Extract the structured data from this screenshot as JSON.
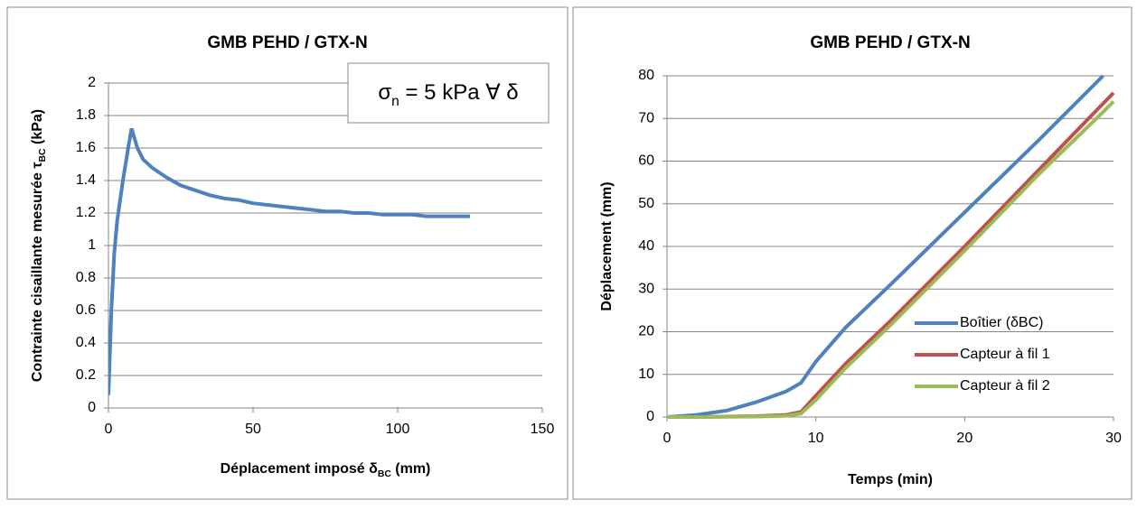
{
  "chart_data": [
    {
      "type": "line",
      "title": "GMB PEHD / GTX-N",
      "xlabel": [
        {
          "text": "Déplacement imposé δ"
        },
        {
          "text": "BC",
          "sub": true
        },
        {
          "text": " (mm)"
        }
      ],
      "ylabel": [
        {
          "text": "Contrainte cisaillante mesurée  τ"
        },
        {
          "text": "BC",
          "sub": true
        },
        {
          "text": " (kPa)"
        }
      ],
      "annotation": [
        {
          "text": "σ"
        },
        {
          "text": "n",
          "sub": true
        },
        {
          "text": " = 5 kPa ∀ δ"
        }
      ],
      "xlim": [
        0,
        150
      ],
      "xticks": [
        0,
        50,
        100,
        150
      ],
      "ylim": [
        0,
        2
      ],
      "yticks": [
        0,
        0.2,
        0.4,
        0.6,
        0.8,
        1,
        1.2,
        1.4,
        1.6,
        1.8,
        2
      ],
      "grid": true,
      "x": [
        0,
        1,
        2,
        3,
        5,
        7,
        8,
        10,
        12,
        15,
        20,
        25,
        30,
        35,
        40,
        45,
        50,
        55,
        60,
        65,
        70,
        75,
        80,
        85,
        90,
        95,
        100,
        105,
        110,
        115,
        120,
        125
      ],
      "series": [
        {
          "color": "#4f81bd",
          "values": [
            0.08,
            0.6,
            0.95,
            1.15,
            1.4,
            1.62,
            1.72,
            1.6,
            1.53,
            1.48,
            1.42,
            1.37,
            1.34,
            1.31,
            1.29,
            1.28,
            1.26,
            1.25,
            1.24,
            1.23,
            1.22,
            1.21,
            1.21,
            1.2,
            1.2,
            1.19,
            1.19,
            1.19,
            1.18,
            1.18,
            1.18,
            1.18
          ]
        }
      ]
    },
    {
      "type": "line",
      "title": "GMB PEHD / GTX-N",
      "xlabel": [
        {
          "text": "Temps (min)"
        }
      ],
      "ylabel": [
        {
          "text": "Déplacement (mm)"
        }
      ],
      "xlim": [
        0,
        30
      ],
      "xticks": [
        0,
        10,
        20,
        30
      ],
      "ylim": [
        0,
        80
      ],
      "yticks": [
        0,
        10,
        20,
        30,
        40,
        50,
        60,
        70,
        80
      ],
      "grid": true,
      "legend": "lower right",
      "x": [
        0,
        2,
        4,
        6,
        8,
        9,
        10,
        12,
        15,
        20,
        25,
        29.3,
        30
      ],
      "series": [
        {
          "name": "Boîtier (δBC)",
          "color": "#4f81bd",
          "values": [
            0,
            0.5,
            1.5,
            3.5,
            6,
            8,
            13,
            21,
            31,
            48,
            65,
            80,
            null
          ]
        },
        {
          "name": "Capteur à fil 1",
          "color": "#c0504d",
          "values": [
            0,
            0,
            0.1,
            0.2,
            0.5,
            1.2,
            5,
            12.5,
            22.5,
            40,
            58,
            73.5,
            76
          ]
        },
        {
          "name": "Capteur à fil 2",
          "color": "#9bbb59",
          "values": [
            0,
            0,
            0.05,
            0.1,
            0.3,
            0.8,
            4,
            11.5,
            21.5,
            39,
            57,
            71.5,
            74
          ]
        }
      ]
    }
  ]
}
